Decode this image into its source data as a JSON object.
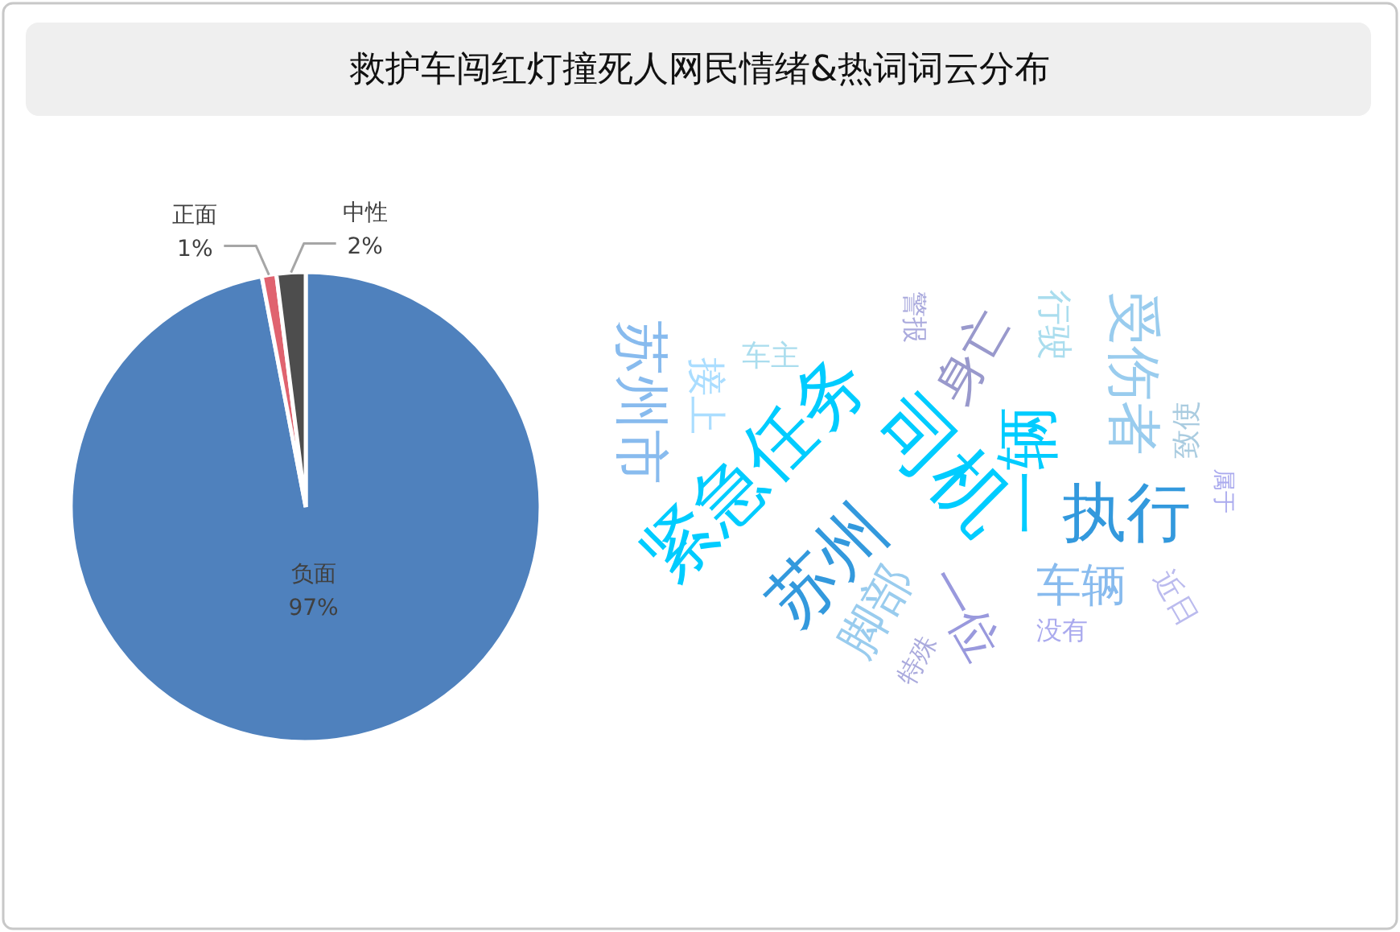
{
  "chart_data": [
    {
      "type": "pie",
      "title": "救护车闯红灯撞死人网民情绪&热词词云分布",
      "categories": [
        "负面",
        "正面",
        "中性"
      ],
      "values": [
        97,
        1,
        2
      ],
      "colors": [
        "#4f81bd",
        "#e0636f",
        "#4d4d4d"
      ],
      "value_labels": [
        "97%",
        "1%",
        "2%"
      ]
    },
    {
      "type": "other",
      "annotations": [
        "紧急任务",
        "司机",
        "苏州",
        "执行",
        "一辆",
        "一位",
        "苏州市",
        "受伤者",
        "身亡",
        "行驶",
        "接上",
        "车主",
        "警报",
        "脚部",
        "车辆",
        "致使",
        "属于",
        "近日",
        "没有",
        "特殊"
      ]
    }
  ]
}
